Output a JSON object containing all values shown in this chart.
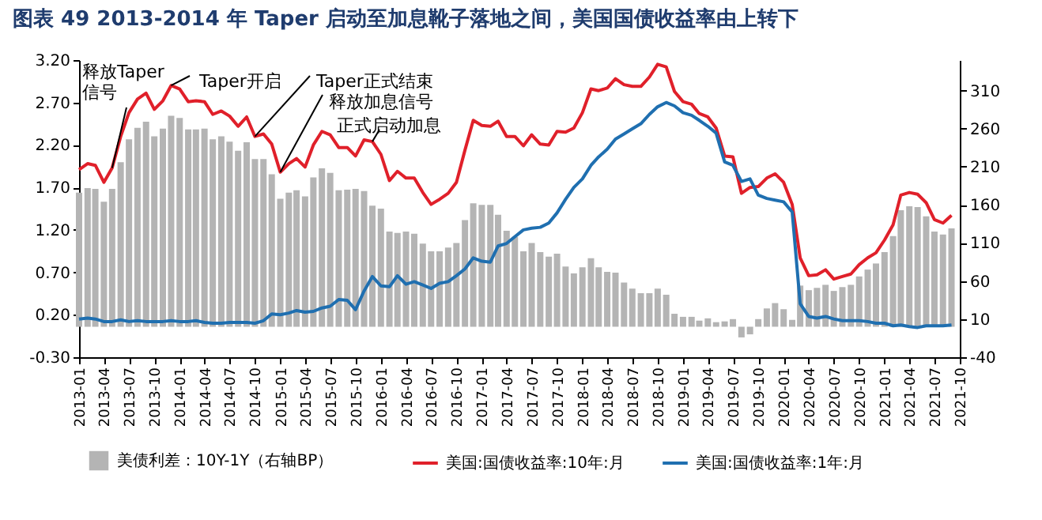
{
  "chart_data": {
    "type": "line",
    "title": "图表 49   2013-2014 年 Taper 启动至加息靴子落地之间，美国国债收益率由上转下",
    "x": [
      "2013-01",
      "2013-02",
      "2013-03",
      "2013-04",
      "2013-05",
      "2013-06",
      "2013-07",
      "2013-08",
      "2013-09",
      "2013-10",
      "2013-11",
      "2013-12",
      "2014-01",
      "2014-02",
      "2014-03",
      "2014-04",
      "2014-05",
      "2014-06",
      "2014-07",
      "2014-08",
      "2014-09",
      "2014-10",
      "2014-11",
      "2014-12",
      "2015-01",
      "2015-02",
      "2015-03",
      "2015-04",
      "2015-05",
      "2015-06",
      "2015-07",
      "2015-08",
      "2015-09",
      "2015-10",
      "2015-11",
      "2015-12",
      "2016-01",
      "2016-02",
      "2016-03",
      "2016-04",
      "2016-05",
      "2016-06",
      "2016-07",
      "2016-08",
      "2016-09",
      "2016-10",
      "2016-11",
      "2016-12",
      "2017-01",
      "2017-02",
      "2017-03",
      "2017-04",
      "2017-05",
      "2017-06",
      "2017-07",
      "2017-08",
      "2017-09",
      "2017-10",
      "2017-11",
      "2017-12",
      "2018-01",
      "2018-02",
      "2018-03",
      "2018-04",
      "2018-05",
      "2018-06",
      "2018-07",
      "2018-08",
      "2018-09",
      "2018-10",
      "2018-11",
      "2018-12",
      "2019-01",
      "2019-02",
      "2019-03",
      "2019-04",
      "2019-05",
      "2019-06",
      "2019-07",
      "2019-08",
      "2019-09",
      "2019-10",
      "2019-11",
      "2019-12",
      "2020-01",
      "2020-02",
      "2020-03",
      "2020-04",
      "2020-05",
      "2020-06",
      "2020-07",
      "2020-08",
      "2020-09",
      "2020-10",
      "2020-11",
      "2020-12",
      "2021-01",
      "2021-02",
      "2021-03",
      "2021-04",
      "2021-05",
      "2021-06",
      "2021-07",
      "2021-08",
      "2021-09"
    ],
    "series": [
      {
        "name": "美债利差：10Y-1Y（右轴BP）",
        "type": "bar",
        "axis": "y2",
        "color": "#b4b4b4",
        "values": [
          176,
          182,
          181,
          164,
          181,
          216,
          246,
          261,
          269,
          250,
          260,
          277,
          274,
          259,
          259,
          260,
          246,
          250,
          243,
          231,
          242,
          220,
          220,
          200,
          168,
          176,
          179,
          171,
          196,
          208,
          202,
          179,
          180,
          181,
          178,
          159,
          155,
          125,
          123,
          125,
          122,
          109,
          99,
          99,
          104,
          110,
          140,
          162,
          160,
          160,
          147,
          126,
          118,
          99,
          110,
          98,
          92,
          96,
          79,
          70,
          78,
          90,
          78,
          72,
          71,
          58,
          50,
          44,
          44,
          50,
          42,
          17,
          13,
          13,
          8,
          11,
          6,
          7,
          10,
          -14,
          -10,
          10,
          24,
          31,
          23,
          9,
          54,
          48,
          51,
          55,
          47,
          52,
          55,
          66,
          75,
          83,
          98,
          119,
          153,
          158,
          157,
          145,
          125,
          121,
          129
        ]
      },
      {
        "name": "美国:国债收益率:10年:月",
        "color": "#e0202a",
        "values": [
          1.91,
          1.98,
          1.96,
          1.76,
          1.93,
          2.3,
          2.58,
          2.74,
          2.81,
          2.62,
          2.72,
          2.9,
          2.86,
          2.71,
          2.72,
          2.71,
          2.56,
          2.6,
          2.54,
          2.42,
          2.53,
          2.3,
          2.33,
          2.21,
          1.88,
          1.98,
          2.04,
          1.94,
          2.2,
          2.36,
          2.32,
          2.17,
          2.17,
          2.07,
          2.26,
          2.24,
          2.09,
          1.78,
          1.89,
          1.81,
          1.81,
          1.64,
          1.5,
          1.56,
          1.63,
          1.76,
          2.14,
          2.49,
          2.43,
          2.42,
          2.48,
          2.3,
          2.3,
          2.19,
          2.32,
          2.21,
          2.2,
          2.36,
          2.35,
          2.4,
          2.58,
          2.86,
          2.84,
          2.87,
          2.98,
          2.91,
          2.89,
          2.89,
          3.0,
          3.15,
          3.12,
          2.83,
          2.71,
          2.68,
          2.57,
          2.53,
          2.4,
          2.07,
          2.06,
          1.63,
          1.7,
          1.71,
          1.81,
          1.86,
          1.76,
          1.5,
          0.87,
          0.66,
          0.67,
          0.73,
          0.62,
          0.65,
          0.68,
          0.79,
          0.87,
          0.93,
          1.08,
          1.26,
          1.61,
          1.64,
          1.62,
          1.52,
          1.32,
          1.28,
          1.37
        ]
      },
      {
        "name": "美国:国债收益率:1年:月",
        "color": "#1f6fb0",
        "values": [
          0.15,
          0.16,
          0.15,
          0.12,
          0.12,
          0.14,
          0.12,
          0.13,
          0.12,
          0.12,
          0.12,
          0.13,
          0.12,
          0.12,
          0.13,
          0.11,
          0.1,
          0.1,
          0.11,
          0.11,
          0.11,
          0.1,
          0.13,
          0.21,
          0.2,
          0.22,
          0.25,
          0.23,
          0.24,
          0.28,
          0.3,
          0.38,
          0.37,
          0.26,
          0.48,
          0.65,
          0.54,
          0.53,
          0.66,
          0.56,
          0.59,
          0.55,
          0.51,
          0.57,
          0.59,
          0.66,
          0.74,
          0.87,
          0.83,
          0.82,
          1.01,
          1.04,
          1.12,
          1.2,
          1.22,
          1.23,
          1.28,
          1.4,
          1.56,
          1.7,
          1.8,
          1.96,
          2.06,
          2.15,
          2.27,
          2.33,
          2.39,
          2.45,
          2.56,
          2.65,
          2.7,
          2.66,
          2.58,
          2.55,
          2.49,
          2.42,
          2.34,
          2.0,
          1.96,
          1.77,
          1.8,
          1.61,
          1.57,
          1.55,
          1.53,
          1.41,
          0.33,
          0.18,
          0.16,
          0.18,
          0.15,
          0.13,
          0.13,
          0.13,
          0.12,
          0.1,
          0.1,
          0.07,
          0.08,
          0.06,
          0.05,
          0.07,
          0.07,
          0.07,
          0.08
        ]
      }
    ],
    "xlim": [
      "2013-01",
      "2021-10"
    ],
    "xticks": [
      "2013-01",
      "2013-04",
      "2013-07",
      "2013-10",
      "2014-01",
      "2014-04",
      "2014-07",
      "2014-10",
      "2015-01",
      "2015-04",
      "2015-07",
      "2015-10",
      "2016-01",
      "2016-04",
      "2016-07",
      "2016-10",
      "2017-01",
      "2017-04",
      "2017-07",
      "2017-10",
      "2018-01",
      "2018-04",
      "2018-07",
      "2018-10",
      "2019-01",
      "2019-04",
      "2019-07",
      "2019-10",
      "2020-01",
      "2020-04",
      "2020-07",
      "2020-10",
      "2021-01",
      "2021-04",
      "2021-07",
      "2021-10"
    ],
    "ylim": [
      -0.3,
      3.2
    ],
    "yticks": [
      {
        "value": -0.3,
        "label": "-0.30"
      },
      {
        "value": 0.2,
        "label": "0.20"
      },
      {
        "value": 0.7,
        "label": "0.70"
      },
      {
        "value": 1.2,
        "label": "1.20"
      },
      {
        "value": 1.7,
        "label": "1.70"
      },
      {
        "value": 2.2,
        "label": "2.20"
      },
      {
        "value": 2.7,
        "label": "2.70"
      },
      {
        "value": 3.2,
        "label": "3.20"
      }
    ],
    "y2lim": [
      -40,
      350
    ],
    "y2ticks": [
      -40,
      10,
      60,
      110,
      160,
      210,
      260,
      310
    ],
    "annotations": [
      {
        "text": "释放Taper\n信号",
        "x": "2013-05",
        "y": 1.93
      },
      {
        "text": "Taper开启",
        "x": "2013-12",
        "y": 2.9
      },
      {
        "text": "Taper正式结束",
        "x": "2014-10",
        "y": 2.3
      },
      {
        "text": "释放加息信号",
        "x": "2015-01",
        "y": 1.88
      },
      {
        "text": "正式启动加息",
        "x": "2015-12",
        "y": 2.24
      }
    ],
    "legend": "bottom"
  }
}
